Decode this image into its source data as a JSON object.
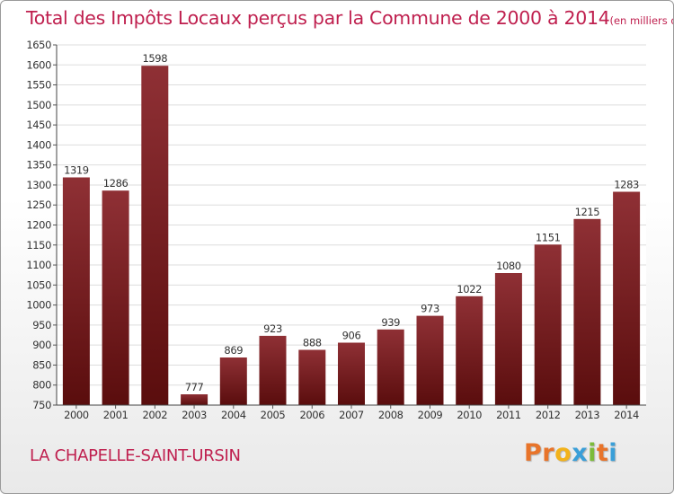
{
  "header": {
    "title": "Total des Impôts Locaux perçus par la Commune de 2000 à 2014",
    "unit": "(en milliers d'€)"
  },
  "footer": {
    "commune": "LA CHAPELLE-SAINT-URSIN",
    "brand": "Proxiti"
  },
  "colors": {
    "title": "#bf1f4e",
    "bar_top": "#8f3035",
    "bar_bottom": "#5a0d0d",
    "logo": [
      "#e8742a",
      "#e8742a",
      "#f2b21a",
      "#3a9fd8",
      "#7cbb3a",
      "#e8742a",
      "#3a9fd8"
    ]
  },
  "chart_data": {
    "type": "bar",
    "title": "Total des Impôts Locaux perçus par la Commune de 2000 à 2014",
    "xlabel": "",
    "ylabel": "",
    "categories": [
      "2000",
      "2001",
      "2002",
      "2003",
      "2004",
      "2005",
      "2006",
      "2007",
      "2008",
      "2009",
      "2010",
      "2011",
      "2012",
      "2013",
      "2014"
    ],
    "values": [
      1319,
      1286,
      1598,
      777,
      869,
      923,
      888,
      906,
      939,
      973,
      1022,
      1080,
      1151,
      1215,
      1283
    ],
    "ylim": [
      750,
      1650
    ],
    "yticks": [
      750,
      800,
      850,
      900,
      950,
      1000,
      1050,
      1100,
      1150,
      1200,
      1250,
      1300,
      1350,
      1400,
      1450,
      1500,
      1550,
      1600,
      1650
    ],
    "grid": true,
    "legend": "none"
  }
}
